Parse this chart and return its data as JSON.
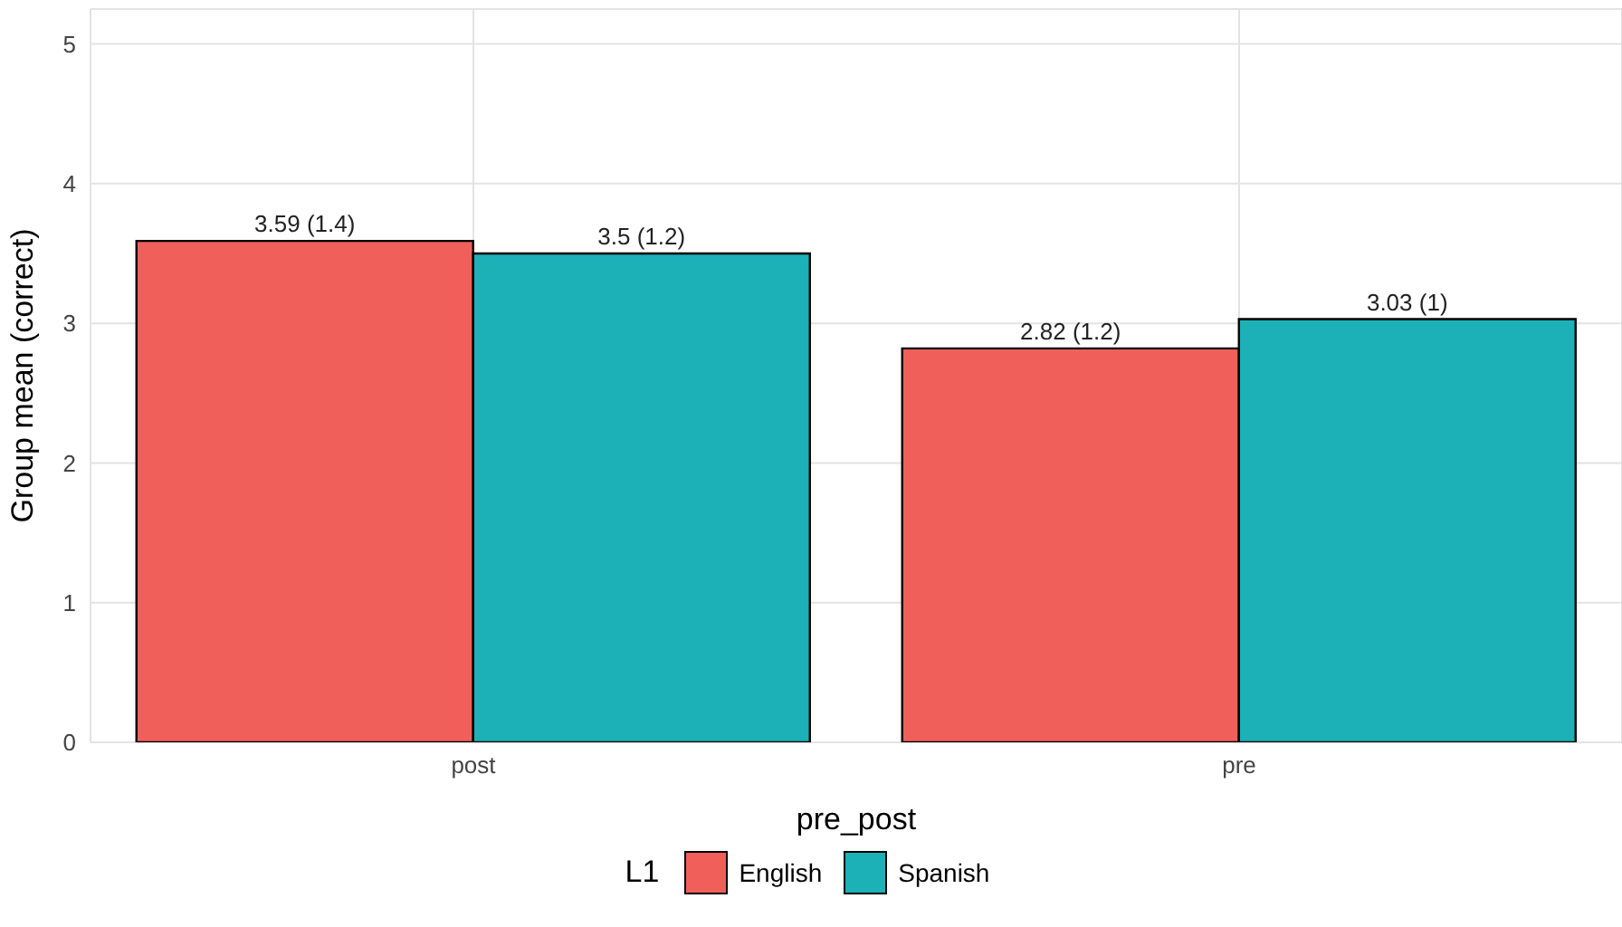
{
  "chart_data": {
    "type": "bar",
    "xlabel": "pre_post",
    "ylabel": "Group mean (correct)",
    "legend_title": "L1",
    "categories": [
      "post",
      "pre"
    ],
    "series": [
      {
        "name": "English",
        "color": "#f15f5a",
        "values": [
          3.59,
          2.82
        ],
        "value_labels": [
          "3.59 (1.4)",
          "2.82 (1.2)"
        ]
      },
      {
        "name": "Spanish",
        "color": "#1bb1b7",
        "values": [
          3.5,
          3.03
        ],
        "value_labels": [
          "3.5 (1.2)",
          "3.03 (1)"
        ]
      }
    ],
    "ylim": [
      0,
      5.25
    ],
    "yticks": [
      0,
      1,
      2,
      3,
      4,
      5
    ],
    "grid": true,
    "legend": "bottom"
  }
}
